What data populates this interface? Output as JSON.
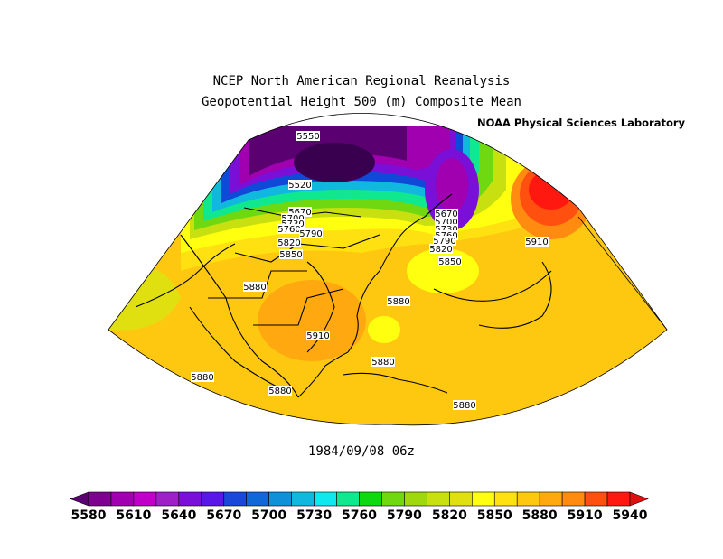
{
  "title": {
    "line1": "NCEP North American Regional Reanalysis",
    "line2": "Geopotential Height 500 (m) Composite Mean"
  },
  "lab_logo_text": "NOAA",
  "lab_text": "Physical Sciences Laboratory",
  "date_label": "1984/09/08 06z",
  "colorbar": {
    "levels": [
      5580,
      5595,
      5610,
      5625,
      5640,
      5655,
      5670,
      5685,
      5700,
      5715,
      5730,
      5745,
      5760,
      5775,
      5790,
      5805,
      5820,
      5835,
      5850,
      5865,
      5880,
      5895,
      5910,
      5925,
      5940
    ],
    "tick_labels": [
      "5580",
      "5610",
      "5640",
      "5670",
      "5700",
      "5730",
      "5760",
      "5790",
      "5820",
      "5850",
      "5880",
      "5910",
      "5940"
    ],
    "colors": [
      "#5a0070",
      "#7d0090",
      "#a000b0",
      "#c000c8",
      "#a020c8",
      "#7a10d8",
      "#5a18e8",
      "#1a48d8",
      "#1068d8",
      "#1090d8",
      "#10b8e0",
      "#10e8f0",
      "#10e890",
      "#10d810",
      "#70d810",
      "#a0d810",
      "#c8e010",
      "#e0e010",
      "#ffff10",
      "#ffe010",
      "#ffc810",
      "#ffa810",
      "#ff8c10",
      "#ff5010",
      "#ff1810",
      "#e01010"
    ]
  },
  "contour_labels": [
    {
      "text": "5550"
    },
    {
      "text": "5520"
    },
    {
      "text": "5670"
    },
    {
      "text": "5700"
    },
    {
      "text": "5730"
    },
    {
      "text": "5760"
    },
    {
      "text": "5790"
    },
    {
      "text": "5820"
    },
    {
      "text": "5850"
    },
    {
      "text": "5880"
    },
    {
      "text": "5910"
    },
    {
      "text": "5880"
    },
    {
      "text": "5880"
    },
    {
      "text": "5880"
    },
    {
      "text": "5880"
    },
    {
      "text": "5880"
    },
    {
      "text": "5670"
    },
    {
      "text": "5700"
    },
    {
      "text": "5730"
    },
    {
      "text": "5760"
    },
    {
      "text": "5790"
    },
    {
      "text": "5820"
    },
    {
      "text": "5850"
    },
    {
      "text": "5910"
    }
  ]
}
